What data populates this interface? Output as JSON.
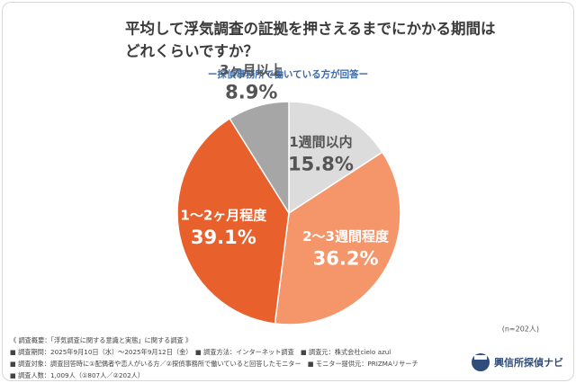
{
  "title_lines": [
    "平均して浮気調査の証拠を押さえるまでにかかる期間は",
    "どれくらいですか？"
  ],
  "chart_data": {
    "type": "pie",
    "subtitle": "ー探偵事務所で働いている方が回答ー",
    "categories": [
      "1週間以内",
      "2〜3週間程度",
      "1〜2ヶ月程度",
      "3ヶ月以上"
    ],
    "values": [
      15.8,
      36.2,
      39.1,
      8.9
    ],
    "value_labels": [
      "15.8%",
      "36.2%",
      "39.1%",
      "8.9%"
    ],
    "colors": [
      "#dcdcdc",
      "#f4956a",
      "#e8602c",
      "#a6a6a6"
    ],
    "label_colors": [
      "#555555",
      "#ffffff",
      "#ffffff",
      "#555555"
    ],
    "note": "(n=202人)"
  },
  "footer": {
    "lines": [
      "《 調査概要：「浮気調査に関する意識と実態」に関する調査 》",
      "■ 調査期間：2025年9月10日（水）〜2025年9月12日（金）　■ 調査方法：インターネット調査　■ 調査元：株式会社cielo azul",
      "■ 調査対象：調査回答時に①配偶者や恋人がいる方／②探偵事務所で働いていると回答したモニター　■ モニター提供元：PRIZMAリサーチ",
      "■ 調査人数：1,009人（①807人／②202人）"
    ],
    "logo": "興信所探偵ナビ"
  }
}
